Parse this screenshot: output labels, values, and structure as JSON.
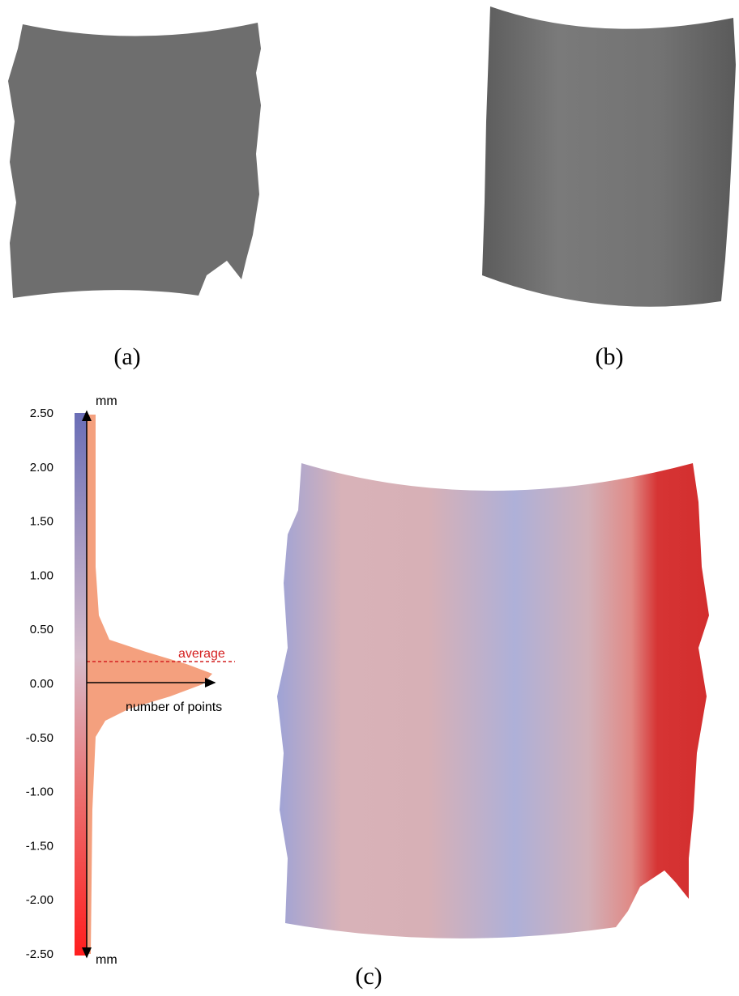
{
  "panels": [
    {
      "label": "(a)"
    },
    {
      "label": "(b)"
    },
    {
      "label": "(c)"
    }
  ],
  "colorbar": {
    "ticks": [
      "2.50",
      "2.00",
      "1.50",
      "1.00",
      "0.50",
      "0.00",
      "-0.50",
      "-1.00",
      "-1.50",
      "-2.00",
      "-2.50"
    ],
    "top_unit": "mm",
    "bottom_unit": "mm"
  },
  "annotations": {
    "average": "average",
    "axis": "number of points"
  }
}
